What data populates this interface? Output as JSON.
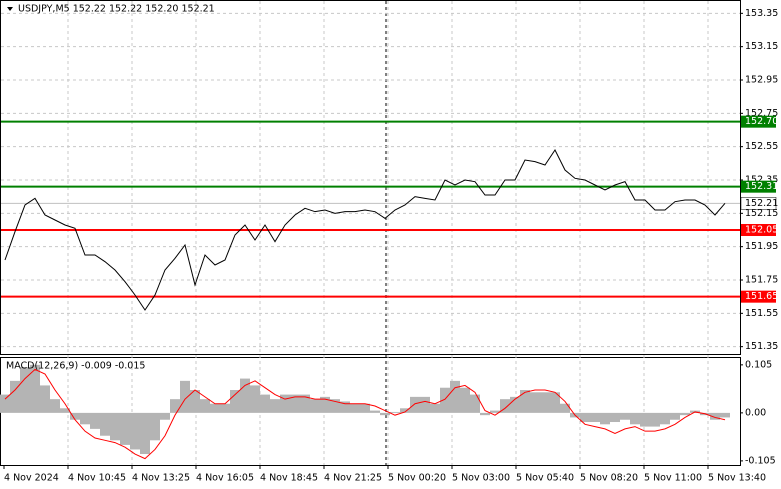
{
  "chart_data": [
    {
      "type": "line",
      "title": "USDJPY,M5  152.22 152.22 152.20 152.21",
      "color": "#000000",
      "values": [
        151.87,
        152.04,
        152.2,
        152.24,
        152.14,
        152.11,
        152.08,
        152.06,
        151.9,
        151.9,
        151.86,
        151.81,
        151.74,
        151.66,
        151.57,
        151.66,
        151.81,
        151.88,
        151.96,
        151.72,
        151.9,
        151.84,
        151.87,
        152.02,
        152.08,
        151.99,
        152.08,
        151.98,
        152.08,
        152.14,
        152.18,
        152.16,
        152.17,
        152.15,
        152.16,
        152.16,
        152.17,
        152.16,
        152.12,
        152.17,
        152.2,
        152.25,
        152.24,
        152.23,
        152.35,
        152.32,
        152.35,
        152.34,
        152.26,
        152.26,
        152.35,
        152.35,
        152.47,
        152.46,
        152.44,
        152.53,
        152.41,
        152.36,
        152.35,
        152.32,
        152.29,
        152.32,
        152.34,
        152.23,
        152.23,
        152.17,
        152.17,
        152.22,
        152.23,
        152.23,
        152.2,
        152.14,
        152.21
      ],
      "ylim": [
        151.3,
        153.43
      ],
      "yticks": [
        153.35,
        153.15,
        152.95,
        152.75,
        152.55,
        152.35,
        152.15,
        151.95,
        151.75,
        151.55,
        151.35
      ],
      "grid": true,
      "levels": [
        {
          "value": 152.7,
          "label": "152.70",
          "color": "#008000"
        },
        {
          "value": 152.31,
          "label": "152.31",
          "color": "#008000"
        },
        {
          "value": 152.05,
          "label": "152.05",
          "color": "#ff0000"
        },
        {
          "value": 151.65,
          "label": "151.65",
          "color": "#ff0000"
        }
      ],
      "current": 152.21,
      "xticks": [
        "4 Nov 2024",
        "4 Nov 10:45",
        "4 Nov 13:25",
        "4 Nov 16:05",
        "4 Nov 18:45",
        "4 Nov 21:25",
        "5 Nov 00:20",
        "5 Nov 03:00",
        "5 Nov 05:40",
        "5 Nov 08:20",
        "5 Nov 11:00",
        "5 Nov 13:40"
      ]
    },
    {
      "type": "macd",
      "title": "MACD(12,26,9) -0.009 -0.015",
      "series": [
        {
          "color": "#b4b4b4",
          "values": [
            0.04,
            0.07,
            0.1,
            0.105,
            0.06,
            0.03,
            0.01,
            -0.015,
            -0.025,
            -0.035,
            -0.05,
            -0.06,
            -0.07,
            -0.08,
            -0.09,
            -0.06,
            -0.015,
            0.03,
            0.07,
            0.05,
            0.03,
            0.02,
            0.02,
            0.05,
            0.075,
            0.06,
            0.04,
            0.03,
            0.04,
            0.04,
            0.04,
            0.03,
            0.035,
            0.03,
            0.025,
            0.02,
            0.02,
            0.005,
            -0.005,
            0.002,
            0.01,
            0.035,
            0.035,
            0.02,
            0.055,
            0.07,
            0.055,
            0.04,
            -0.005,
            0.005,
            0.03,
            0.035,
            0.05,
            0.045,
            0.045,
            0.045,
            0.02,
            -0.01,
            -0.02,
            -0.02,
            -0.025,
            -0.02,
            -0.015,
            -0.025,
            -0.03,
            -0.03,
            -0.025,
            -0.015,
            -0.005,
            0.005,
            -0.005,
            -0.015,
            -0.01
          ]
        },
        {
          "color": "#ff0000",
          "values": [
            0.03,
            0.05,
            0.075,
            0.095,
            0.085,
            0.05,
            0.02,
            -0.015,
            -0.04,
            -0.055,
            -0.06,
            -0.065,
            -0.075,
            -0.09,
            -0.1,
            -0.08,
            -0.05,
            -0.005,
            0.03,
            0.05,
            0.035,
            0.02,
            0.02,
            0.04,
            0.06,
            0.07,
            0.055,
            0.04,
            0.03,
            0.035,
            0.035,
            0.03,
            0.03,
            0.025,
            0.02,
            0.02,
            0.02,
            0.015,
            0.005,
            -0.005,
            0.002,
            0.02,
            0.025,
            0.02,
            0.03,
            0.055,
            0.06,
            0.045,
            0.005,
            -0.005,
            0.01,
            0.03,
            0.045,
            0.05,
            0.05,
            0.045,
            0.025,
            -0.005,
            -0.025,
            -0.03,
            -0.035,
            -0.045,
            -0.035,
            -0.03,
            -0.04,
            -0.04,
            -0.035,
            -0.025,
            -0.01,
            0.002,
            -0.002,
            -0.01,
            -0.015
          ]
        }
      ],
      "ylim": [
        -0.114,
        0.12
      ],
      "yticks": [
        0.105,
        {
          "value": 0,
          "label": "0.00"
        },
        -0.105
      ]
    }
  ]
}
